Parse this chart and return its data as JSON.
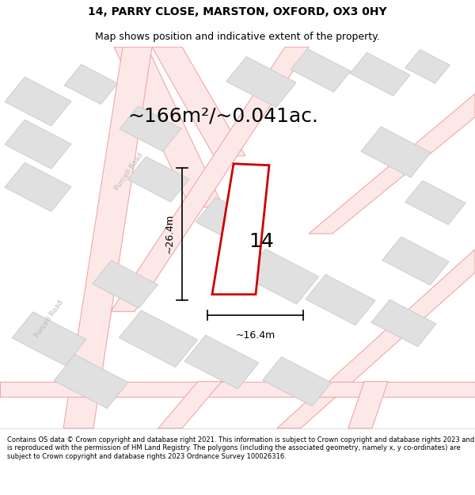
{
  "title_line1": "14, PARRY CLOSE, MARSTON, OXFORD, OX3 0HY",
  "title_line2": "Map shows position and indicative extent of the property.",
  "area_text": "~166m²/~0.041ac.",
  "dim_height": "~26.4m",
  "dim_width": "~16.4m",
  "property_number": "14",
  "footer_text": "Contains OS data © Crown copyright and database right 2021. This information is subject to Crown copyright and database rights 2023 and is reproduced with the permission of HM Land Registry. The polygons (including the associated geometry, namely x, y co-ordinates) are subject to Crown copyright and database rights 2023 Ordnance Survey 100026316.",
  "bg_color": "#ffffff",
  "map_bg": "#ffffff",
  "road_line_color": "#f0a8a8",
  "building_fill": "#e0e0e0",
  "building_edge": "#c8c8c8",
  "property_color": "#cc0000",
  "property_fill": "#ffffff",
  "dim_color": "#111111",
  "road_label_color": "#aaaaaa",
  "title_fontsize": 10,
  "subtitle_fontsize": 9,
  "area_fontsize": 18,
  "number_fontsize": 18,
  "dim_label_fontsize": 9,
  "footer_fontsize": 6
}
